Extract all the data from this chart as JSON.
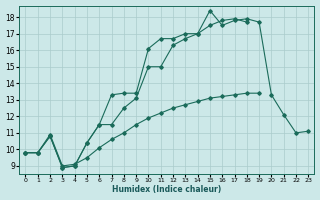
{
  "xlabel": "Humidex (Indice chaleur)",
  "bg_color": "#cce8e8",
  "grid_color": "#aacccc",
  "line_color": "#1a6b5a",
  "xlim": [
    -0.5,
    23.5
  ],
  "ylim": [
    8.5,
    18.7
  ],
  "xticks": [
    0,
    1,
    2,
    3,
    4,
    5,
    6,
    7,
    8,
    9,
    10,
    11,
    12,
    13,
    14,
    15,
    16,
    17,
    18,
    19,
    20,
    21,
    22,
    23
  ],
  "yticks": [
    9,
    10,
    11,
    12,
    13,
    14,
    15,
    16,
    17,
    18
  ],
  "series": [
    {
      "x": [
        0,
        1,
        2,
        3,
        4,
        5,
        6,
        7,
        8,
        9,
        10,
        11,
        12,
        13,
        14,
        15,
        16,
        17,
        18,
        19,
        20,
        21,
        22,
        23
      ],
      "y": [
        9.8,
        9.8,
        10.8,
        8.9,
        9.0,
        10.4,
        11.5,
        13.3,
        13.4,
        13.4,
        16.1,
        16.7,
        16.7,
        17.0,
        17.0,
        18.4,
        17.5,
        17.8,
        17.9,
        17.7,
        13.3,
        12.1,
        11.0,
        11.1
      ]
    },
    {
      "x": [
        0,
        1,
        2,
        3,
        4,
        5,
        6,
        7,
        8,
        9,
        10,
        11,
        12,
        13,
        14,
        15,
        16,
        17,
        18
      ],
      "y": [
        9.8,
        9.8,
        10.8,
        8.9,
        9.0,
        10.4,
        11.5,
        11.5,
        12.5,
        13.1,
        15.0,
        15.0,
        16.3,
        16.7,
        17.0,
        17.5,
        17.8,
        17.9,
        17.7
      ]
    },
    {
      "x": [
        0,
        1,
        2,
        3,
        4,
        5,
        6,
        7,
        8,
        9,
        10,
        11,
        12,
        13,
        14,
        15,
        16,
        17,
        18,
        19
      ],
      "y": [
        9.8,
        9.8,
        10.9,
        9.0,
        9.1,
        9.5,
        10.1,
        10.6,
        11.0,
        11.5,
        11.9,
        12.2,
        12.5,
        12.7,
        12.9,
        13.1,
        13.2,
        13.3,
        13.4,
        13.4
      ]
    }
  ]
}
